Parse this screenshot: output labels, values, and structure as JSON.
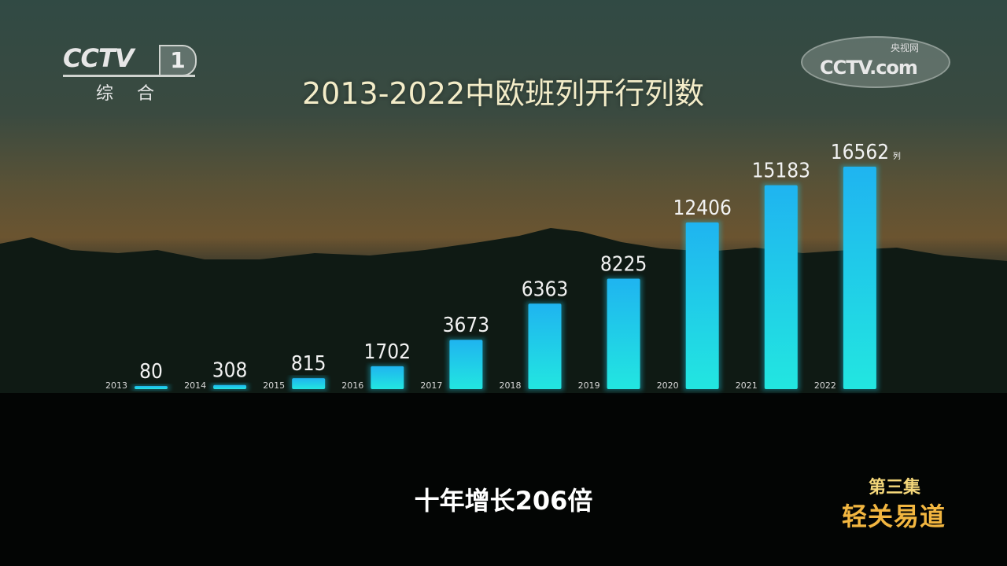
{
  "channel_logo": {
    "brand": "CCTV",
    "number": "1",
    "subtitle": "综合"
  },
  "watermark": {
    "brand": "CCTV.com",
    "cn": "央视网"
  },
  "chart_data": {
    "type": "bar",
    "title": "2013-2022中欧班列开行列数",
    "categories": [
      "2013",
      "2014",
      "2015",
      "2016",
      "2017",
      "2018",
      "2019",
      "2020",
      "2021",
      "2022"
    ],
    "values": [
      80,
      308,
      815,
      1702,
      3673,
      6363,
      8225,
      12406,
      15183,
      16562
    ],
    "value_labels": [
      "80",
      "308",
      "815",
      "1702",
      "3673",
      "6363",
      "8225",
      "12406",
      "15183",
      "16562"
    ],
    "unit": "列",
    "ylim": [
      0,
      16562
    ],
    "bar_color": "#19d8e8",
    "grid": false
  },
  "caption": "十年增长206倍",
  "episode": {
    "number": "第三集",
    "title": "轻关易道"
  }
}
